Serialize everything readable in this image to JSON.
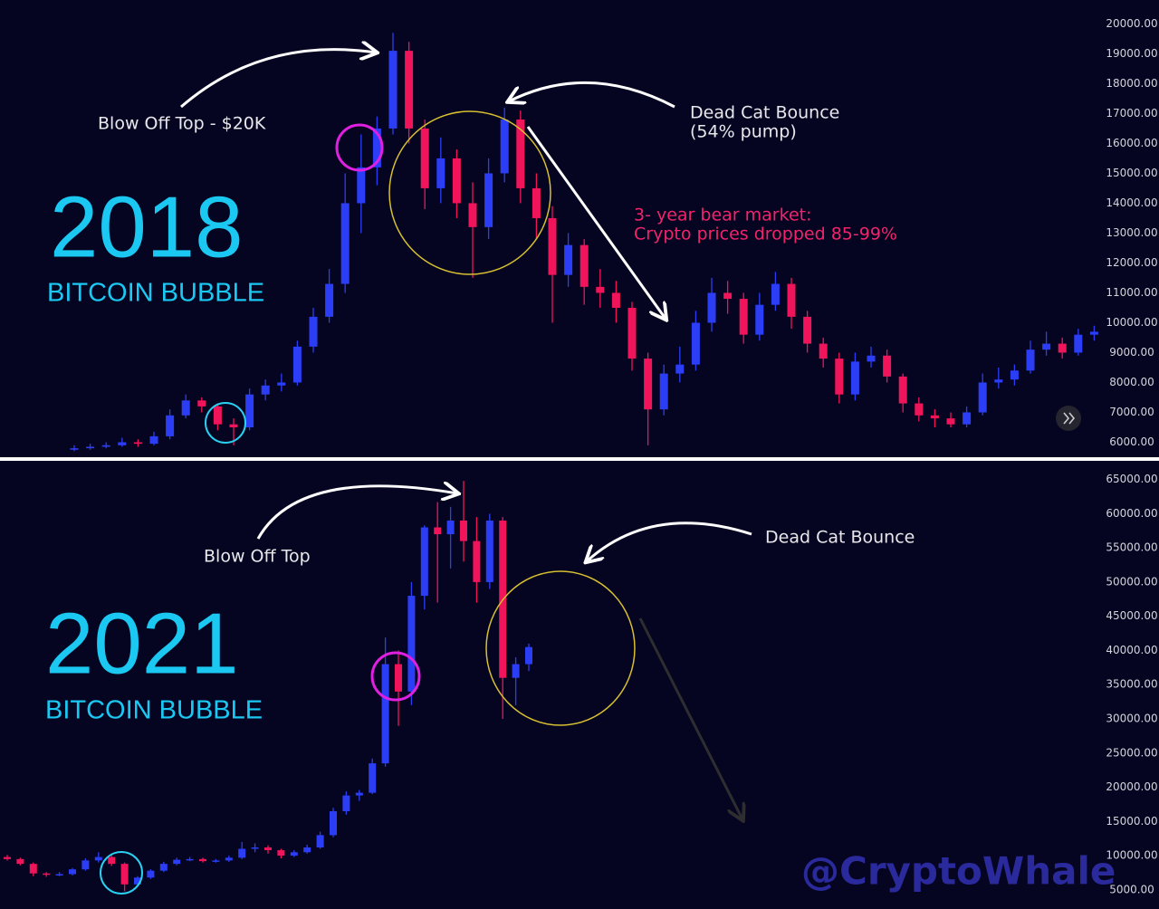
{
  "chart_data": [
    {
      "type": "candlestick",
      "title": "2018",
      "subtitle": "BITCOIN BUBBLE",
      "annotations": [
        {
          "text": "Blow Off Top - $20K"
        },
        {
          "text": "Dead Cat Bounce"
        },
        {
          "text": "(54% pump)"
        },
        {
          "text": "3- year bear market:"
        },
        {
          "text": "Crypto prices dropped 85-99%"
        }
      ],
      "up_color": "#2b3ef5",
      "down_color": "#f0145a",
      "ylim": [
        5500,
        20800
      ],
      "yticks": [
        {
          "value": 6000,
          "label": "6000.00"
        },
        {
          "value": 7000,
          "label": "7000.00"
        },
        {
          "value": 8000,
          "label": "8000.00"
        },
        {
          "value": 9000,
          "label": "9000.00"
        },
        {
          "value": 10000,
          "label": "10000.00"
        },
        {
          "value": 11000,
          "label": "11000.00"
        },
        {
          "value": 12000,
          "label": "12000.00"
        },
        {
          "value": 13000,
          "label": "13000.00"
        },
        {
          "value": 14000,
          "label": "14000.00"
        },
        {
          "value": 15000,
          "label": "15000.00"
        },
        {
          "value": 16000,
          "label": "16000.00"
        },
        {
          "value": 17000,
          "label": "17000.00"
        },
        {
          "value": 18000,
          "label": "18000.00"
        },
        {
          "value": 19000,
          "label": "19000.00"
        },
        {
          "value": 20000,
          "label": "20000.00"
        }
      ],
      "open": [
        5750,
        5800,
        5850,
        5900,
        6000,
        5950,
        6200,
        6900,
        7400,
        7200,
        6600,
        6500,
        7600,
        7900,
        8000,
        9200,
        10200,
        11300,
        14000,
        15200,
        16500,
        19100,
        16500,
        14500,
        15500,
        14000,
        13200,
        15000,
        16800,
        14500,
        13500,
        11600,
        12600,
        11200,
        11000,
        10500,
        8800,
        7100,
        8300,
        8600,
        10000,
        11000,
        10800,
        9600,
        10600,
        11300,
        10200,
        9300,
        8800,
        7600,
        8700,
        8900,
        8200,
        7300,
        6900,
        6800,
        6600,
        7000,
        8000,
        8100,
        8400,
        9100,
        9300,
        9000,
        9600
      ],
      "high": [
        5900,
        5950,
        6000,
        6150,
        6100,
        6350,
        7100,
        7600,
        7500,
        7300,
        6800,
        7800,
        8100,
        8300,
        9400,
        10500,
        11800,
        15000,
        16300,
        16900,
        19700,
        19400,
        16800,
        16200,
        15800,
        14700,
        15500,
        17200,
        17100,
        15000,
        13900,
        13000,
        12800,
        11800,
        11400,
        10700,
        9000,
        8600,
        9200,
        10400,
        11500,
        11400,
        11000,
        11000,
        11700,
        11500,
        10400,
        9500,
        9000,
        9000,
        9200,
        9100,
        8300,
        7500,
        7100,
        7000,
        7200,
        8300,
        8500,
        8600,
        9400,
        9700,
        9500,
        9800,
        9900
      ],
      "low": [
        5700,
        5750,
        5800,
        5850,
        5850,
        5900,
        6100,
        6800,
        7000,
        6400,
        5900,
        6400,
        7400,
        7700,
        7900,
        9000,
        10000,
        11000,
        13000,
        14600,
        16300,
        16000,
        13800,
        14000,
        13500,
        11500,
        12800,
        14700,
        14000,
        12800,
        10000,
        11200,
        10600,
        10500,
        10000,
        8400,
        5900,
        6900,
        8000,
        8400,
        9700,
        10300,
        9300,
        9400,
        10400,
        9800,
        9000,
        8500,
        7300,
        7400,
        8500,
        8000,
        7000,
        6700,
        6500,
        6500,
        6500,
        6900,
        7800,
        7900,
        8300,
        8900,
        8800,
        8900,
        9400
      ],
      "close": [
        5800,
        5850,
        5900,
        6000,
        5950,
        6200,
        6900,
        7400,
        7200,
        6600,
        6500,
        7600,
        7900,
        8000,
        9200,
        10200,
        11300,
        14000,
        15200,
        16500,
        19100,
        16500,
        14500,
        15500,
        14000,
        13200,
        15000,
        16800,
        14500,
        13500,
        11600,
        12600,
        11200,
        11000,
        10500,
        8800,
        7100,
        8300,
        8600,
        10000,
        11000,
        10800,
        9600,
        10600,
        11300,
        10200,
        9300,
        8800,
        7600,
        8700,
        8900,
        8200,
        7300,
        6900,
        6800,
        6600,
        7000,
        8000,
        8100,
        8400,
        9100,
        9300,
        9000,
        9600,
        9700
      ]
    },
    {
      "type": "candlestick",
      "title": "2021",
      "subtitle": "BITCOIN BUBBLE",
      "annotations": [
        {
          "text": "Blow Off Top"
        },
        {
          "text": "Dead Cat Bounce"
        }
      ],
      "up_color": "#2b3ef5",
      "down_color": "#f0145a",
      "ylim": [
        2200,
        67600
      ],
      "yticks": [
        {
          "value": 5000,
          "label": "5000.00"
        },
        {
          "value": 10000,
          "label": "10000.00"
        },
        {
          "value": 15000,
          "label": "15000.00"
        },
        {
          "value": 20000,
          "label": "20000.00"
        },
        {
          "value": 25000,
          "label": "25000.00"
        },
        {
          "value": 30000,
          "label": "30000.00"
        },
        {
          "value": 35000,
          "label": "35000.00"
        },
        {
          "value": 40000,
          "label": "40000.00"
        },
        {
          "value": 45000,
          "label": "45000.00"
        },
        {
          "value": 50000,
          "label": "50000.00"
        },
        {
          "value": 55000,
          "label": "55000.00"
        },
        {
          "value": 60000,
          "label": "60000.00"
        },
        {
          "value": 65000,
          "label": "65000.00"
        }
      ],
      "open": [
        9800,
        9500,
        8800,
        7400,
        7200,
        7300,
        8000,
        9300,
        9800,
        8800,
        5800,
        6800,
        7800,
        8800,
        9400,
        9500,
        9200,
        9300,
        9700,
        11000,
        11200,
        10800,
        10000,
        10500,
        11200,
        13000,
        16500,
        18800,
        19200,
        23500,
        38000,
        34000,
        48000,
        58000,
        57000,
        59000,
        56000,
        50000,
        59000,
        36000,
        38000
      ],
      "high": [
        10100,
        9700,
        9000,
        7600,
        7600,
        8200,
        9600,
        10500,
        10100,
        9000,
        7000,
        8000,
        9100,
        9700,
        9800,
        9700,
        9500,
        10000,
        12000,
        11800,
        11500,
        11000,
        10800,
        11600,
        13500,
        17000,
        19400,
        19600,
        24200,
        41900,
        40000,
        50000,
        58300,
        61700,
        61000,
        64800,
        59500,
        60000,
        59500,
        39000,
        41000
      ],
      "low": [
        9300,
        8600,
        7000,
        6900,
        7000,
        7100,
        7800,
        9000,
        8500,
        4800,
        5500,
        6600,
        7600,
        8600,
        9200,
        9000,
        9000,
        9100,
        9500,
        10500,
        10300,
        9600,
        9800,
        10300,
        11000,
        12700,
        16000,
        18000,
        19000,
        23000,
        29000,
        32000,
        46000,
        47000,
        52000,
        53000,
        47000,
        49000,
        30000,
        32000,
        37000
      ],
      "close": [
        9500,
        8800,
        7400,
        7200,
        7300,
        8000,
        9300,
        9800,
        8800,
        5800,
        6800,
        7800,
        8800,
        9400,
        9500,
        9200,
        9300,
        9700,
        11000,
        11200,
        10800,
        10000,
        10500,
        11200,
        13000,
        16500,
        18800,
        19200,
        23500,
        38000,
        34000,
        48000,
        58000,
        57000,
        59000,
        56000,
        50000,
        59000,
        36000,
        38000,
        40500
      ]
    }
  ],
  "watermark": "@CryptoWhale"
}
